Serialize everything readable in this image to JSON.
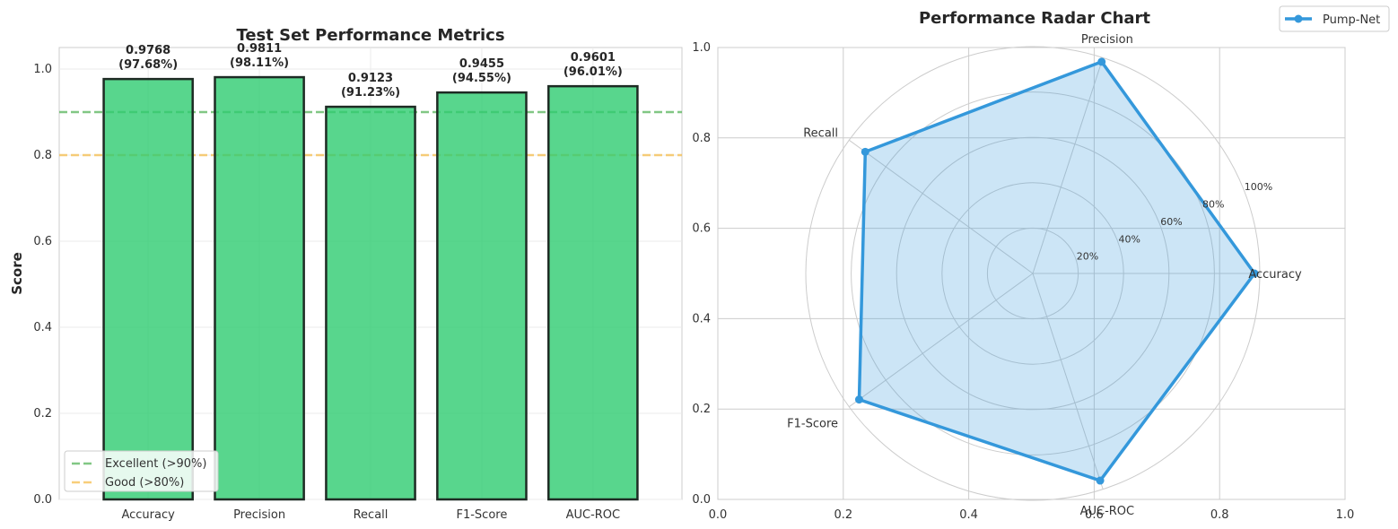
{
  "chart_data": [
    {
      "type": "bar",
      "title": "Test Set Performance Metrics",
      "xlabel": "",
      "ylabel": "Score",
      "ylim": [
        0,
        1.05
      ],
      "yticks": [
        "0.0",
        "0.2",
        "0.4",
        "0.6",
        "0.8",
        "1.0"
      ],
      "categories": [
        "Accuracy",
        "Precision",
        "Recall",
        "F1-Score",
        "AUC-ROC"
      ],
      "values": [
        0.9768,
        0.9811,
        0.9123,
        0.9455,
        0.9601
      ],
      "value_labels": [
        "0.9768",
        "0.9811",
        "0.9123",
        "0.9455",
        "0.9601"
      ],
      "percent_labels": [
        "(97.68%)",
        "(98.11%)",
        "(91.23%)",
        "(94.55%)",
        "(96.01%)"
      ],
      "bar_color": "#2ecc71",
      "bar_edge_color": "#1e2b24",
      "reference_lines": [
        {
          "label": "Excellent (>90%)",
          "value": 0.9,
          "color": "#4caf50"
        },
        {
          "label": "Good (>80%)",
          "value": 0.8,
          "color": "#f5b942"
        }
      ],
      "legend_position": "lower-left",
      "grid": true
    },
    {
      "type": "radar",
      "title": "Performance Radar Chart",
      "categories": [
        "Accuracy",
        "Precision",
        "Recall",
        "F1-Score",
        "AUC-ROC"
      ],
      "series": [
        {
          "name": "Pump-Net",
          "values": [
            0.9768,
            0.9811,
            0.9123,
            0.9455,
            0.9601
          ],
          "color": "#3498db"
        }
      ],
      "radial_ticks": [
        "20%",
        "40%",
        "60%",
        "80%",
        "100%"
      ],
      "background_axis_ticks": [
        "0.0",
        "0.2",
        "0.4",
        "0.6",
        "0.8",
        "1.0"
      ],
      "legend_position": "top-right",
      "grid": true
    }
  ]
}
